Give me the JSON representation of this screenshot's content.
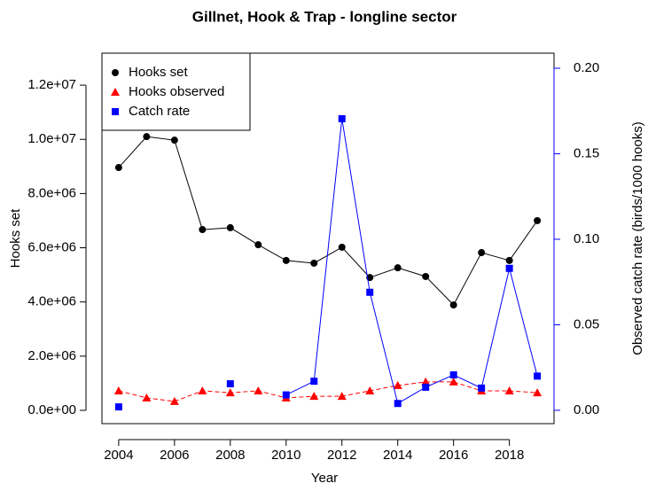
{
  "chart_data": {
    "type": "line",
    "title": "Gillnet, Hook & Trap - longline sector",
    "x_label": "Year",
    "y_label": "Hooks set",
    "y2_label": "Observed catch rate (birds/1000 hooks)",
    "x": [
      2004,
      2005,
      2006,
      2007,
      2008,
      2009,
      2010,
      2011,
      2012,
      2013,
      2014,
      2015,
      2016,
      2017,
      2018,
      2019
    ],
    "xlim": [
      2003.4,
      2019.6
    ],
    "xticks": [
      2004,
      2006,
      2008,
      2010,
      2012,
      2014,
      2016,
      2018
    ],
    "ylim": [
      -490000,
      13180000
    ],
    "yticks": [
      {
        "value": 0,
        "label": "0.0e+00"
      },
      {
        "value": 2000000,
        "label": "2.0e+06"
      },
      {
        "value": 4000000,
        "label": "4.0e+06"
      },
      {
        "value": 6000000,
        "label": "6.0e+06"
      },
      {
        "value": 8000000,
        "label": "8.0e+06"
      },
      {
        "value": 10000000,
        "label": "1.0e+07"
      },
      {
        "value": 12000000,
        "label": "1.2e+07"
      }
    ],
    "y2lim": [
      -0.0078,
      0.2088
    ],
    "y2ticks": [
      {
        "value": 0,
        "label": "0.00"
      },
      {
        "value": 0.05,
        "label": "0.05"
      },
      {
        "value": 0.1,
        "label": "0.10"
      },
      {
        "value": 0.15,
        "label": "0.15"
      },
      {
        "value": 0.2,
        "label": "0.20"
      }
    ],
    "y2_color": "#0000ff",
    "legend": "top-left",
    "series": [
      {
        "name": "Hooks set",
        "color": "#000000",
        "marker": "circle",
        "linestyle": "solid",
        "values": [
          8960000,
          10100000,
          9970000,
          6670000,
          6740000,
          6110000,
          5530000,
          5430000,
          6020000,
          4900000,
          5260000,
          4940000,
          3890000,
          5820000,
          5530000,
          7000000
        ]
      },
      {
        "name": "Hooks observed",
        "color": "#ff0000",
        "marker": "triangle",
        "linestyle": "dashed",
        "values": [
          720000,
          460000,
          330000,
          720000,
          650000,
          720000,
          460000,
          520000,
          520000,
          720000,
          920000,
          1050000,
          1050000,
          720000,
          720000,
          650000
        ]
      },
      {
        "name": "Catch rate",
        "color": "#0000ff",
        "marker": "square",
        "linestyle": "solid",
        "axis": "y2",
        "values": [
          0.002,
          null,
          null,
          null,
          0.0155,
          null,
          0.009,
          0.017,
          0.1705,
          0.069,
          0.004,
          0.0135,
          0.0207,
          0.013,
          0.083,
          0.02
        ]
      }
    ]
  }
}
